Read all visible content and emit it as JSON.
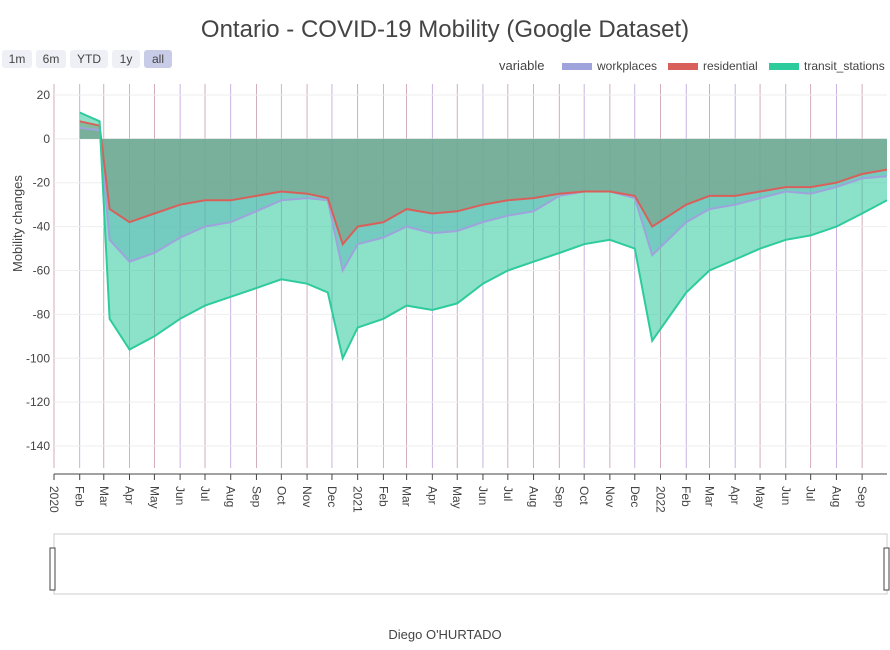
{
  "range_buttons": [
    {
      "label": "1m",
      "active": false
    },
    {
      "label": "6m",
      "active": false
    },
    {
      "label": "YTD",
      "active": false
    },
    {
      "label": "1y",
      "active": false
    },
    {
      "label": "all",
      "active": true
    }
  ],
  "legend": {
    "title": "variable",
    "items": [
      {
        "label": "workplaces",
        "color": "#9fa3dc"
      },
      {
        "label": "residential",
        "color": "#d9605a"
      },
      {
        "label": "transit_stations",
        "color": "#2ecb9c"
      }
    ]
  },
  "chart_data": {
    "type": "area",
    "title": "Ontario - COVID-19 Mobility (Google Dataset)",
    "xlabel": "",
    "ylabel": "Mobility changes",
    "credit": "Diego O'HURTADO",
    "x_range": [
      "2020-01-15",
      "2022-10-15"
    ],
    "ylim": [
      -150,
      25
    ],
    "y_ticks": [
      20,
      0,
      -20,
      -40,
      -60,
      -80,
      -100,
      -120,
      -140
    ],
    "x_ticks": [
      "2020-01-15",
      "2020-02-15",
      "2020-03-15",
      "2020-04-15",
      "2020-05-15",
      "2020-06-15",
      "2020-07-15",
      "2020-08-15",
      "2020-09-15",
      "2020-10-15",
      "2020-11-15",
      "2020-12-15",
      "2021-01-15",
      "2021-02-15",
      "2021-03-15",
      "2021-04-15",
      "2021-05-15",
      "2021-06-15",
      "2021-07-15",
      "2021-08-15",
      "2021-09-15",
      "2021-10-15",
      "2021-11-15",
      "2021-12-15",
      "2022-01-15",
      "2022-02-15",
      "2022-03-15",
      "2022-04-15",
      "2022-05-15",
      "2022-06-15",
      "2022-07-15",
      "2022-08-15",
      "2022-09-15"
    ],
    "x_tick_labels": [
      "2020",
      "Feb",
      "Mar",
      "Apr",
      "May",
      "Jun",
      "Jul",
      "Aug",
      "Sep",
      "Oct",
      "Nov",
      "Dec",
      "2021",
      "Feb",
      "Mar",
      "Apr",
      "May",
      "Jun",
      "Jul",
      "Aug",
      "Sep",
      "Oct",
      "Nov",
      "Dec",
      "2022",
      "Feb",
      "Mar",
      "Apr",
      "May",
      "Jun",
      "Jul",
      "Aug",
      "Sep"
    ],
    "series": [
      {
        "name": "workplaces",
        "color": "#9fa3dc",
        "fill": "tozeroy",
        "x": [
          "2020-02-15",
          "2020-03-10",
          "2020-03-22",
          "2020-04-15",
          "2020-05-15",
          "2020-06-15",
          "2020-07-15",
          "2020-08-15",
          "2020-09-15",
          "2020-10-15",
          "2020-11-15",
          "2020-12-10",
          "2020-12-28",
          "2021-01-15",
          "2021-02-15",
          "2021-03-15",
          "2021-04-15",
          "2021-05-15",
          "2021-06-15",
          "2021-07-15",
          "2021-08-15",
          "2021-09-15",
          "2021-10-15",
          "2021-11-15",
          "2021-12-15",
          "2022-01-05",
          "2022-02-15",
          "2022-03-15",
          "2022-04-15",
          "2022-05-15",
          "2022-06-15",
          "2022-07-15",
          "2022-08-15",
          "2022-09-15",
          "2022-10-15"
        ],
        "y": [
          5,
          4,
          -46,
          -56,
          -52,
          -45,
          -40,
          -38,
          -33,
          -28,
          -27,
          -28,
          -60,
          -48,
          -45,
          -40,
          -43,
          -42,
          -38,
          -35,
          -33,
          -26,
          -24,
          -24,
          -27,
          -53,
          -38,
          -32,
          -30,
          -27,
          -24,
          -25,
          -22,
          -18,
          -17
        ]
      },
      {
        "name": "residential",
        "color": "#d9605a",
        "fill": "tonexty",
        "x": [
          "2020-02-15",
          "2020-03-10",
          "2020-03-22",
          "2020-04-15",
          "2020-05-15",
          "2020-06-15",
          "2020-07-15",
          "2020-08-15",
          "2020-09-15",
          "2020-10-15",
          "2020-11-15",
          "2020-12-10",
          "2020-12-28",
          "2021-01-15",
          "2021-02-15",
          "2021-03-15",
          "2021-04-15",
          "2021-05-15",
          "2021-06-15",
          "2021-07-15",
          "2021-08-15",
          "2021-09-15",
          "2021-10-15",
          "2021-11-15",
          "2021-12-15",
          "2022-01-05",
          "2022-02-15",
          "2022-03-15",
          "2022-04-15",
          "2022-05-15",
          "2022-06-15",
          "2022-07-15",
          "2022-08-15",
          "2022-09-15",
          "2022-10-15"
        ],
        "y": [
          8,
          6,
          -32,
          -38,
          -34,
          -30,
          -28,
          -28,
          -26,
          -24,
          -25,
          -27,
          -48,
          -40,
          -38,
          -32,
          -34,
          -33,
          -30,
          -28,
          -27,
          -25,
          -24,
          -24,
          -26,
          -40,
          -30,
          -26,
          -26,
          -24,
          -22,
          -22,
          -20,
          -16,
          -14
        ]
      },
      {
        "name": "transit_stations",
        "color": "#2ecb9c",
        "fill": "tonexty",
        "x": [
          "2020-02-15",
          "2020-03-10",
          "2020-03-22",
          "2020-04-15",
          "2020-05-15",
          "2020-06-15",
          "2020-07-15",
          "2020-08-15",
          "2020-09-15",
          "2020-10-15",
          "2020-11-15",
          "2020-12-10",
          "2020-12-28",
          "2021-01-15",
          "2021-02-15",
          "2021-03-15",
          "2021-04-15",
          "2021-05-15",
          "2021-06-15",
          "2021-07-15",
          "2021-08-15",
          "2021-09-15",
          "2021-10-15",
          "2021-11-15",
          "2021-12-15",
          "2022-01-05",
          "2022-02-15",
          "2022-03-15",
          "2022-04-15",
          "2022-05-15",
          "2022-06-15",
          "2022-07-15",
          "2022-08-15",
          "2022-09-15",
          "2022-10-15"
        ],
        "y": [
          12,
          8,
          -82,
          -96,
          -90,
          -82,
          -76,
          -72,
          -68,
          -64,
          -66,
          -70,
          -100,
          -86,
          -82,
          -76,
          -78,
          -75,
          -66,
          -60,
          -56,
          -52,
          -48,
          -46,
          -50,
          -92,
          -70,
          -60,
          -55,
          -50,
          -46,
          -44,
          -40,
          -34,
          -28
        ]
      }
    ]
  }
}
